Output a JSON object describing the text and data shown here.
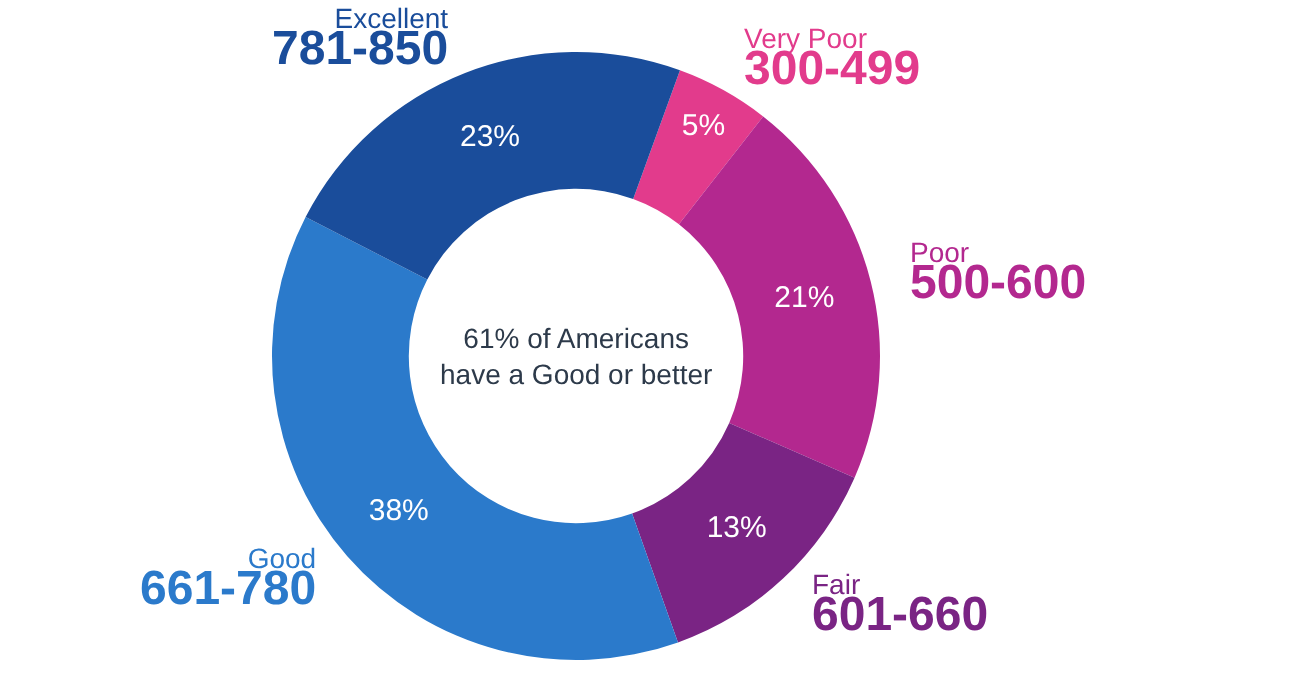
{
  "chart_data": {
    "type": "donut",
    "categories": [
      "Very Poor",
      "Poor",
      "Fair",
      "Good",
      "Excellent"
    ],
    "values": [
      5,
      21,
      13,
      38,
      23
    ],
    "colors": [
      "#e23b8c",
      "#b3288f",
      "#7a2484",
      "#2b7acb",
      "#1a4d9b"
    ],
    "value_labels": [
      "5%",
      "21%",
      "13%",
      "38%",
      "23%"
    ],
    "annotations": [
      "61% of Americans\nhave a Good or better",
      "300-499",
      "500-600",
      "601-660",
      "661-780",
      "781-850"
    ],
    "legend": false
  }
}
